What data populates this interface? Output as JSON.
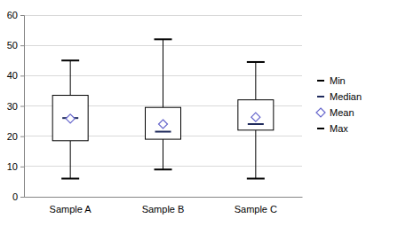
{
  "chart_data": {
    "type": "box",
    "categories": [
      "Sample A",
      "Sample B",
      "Sample C"
    ],
    "q1": [
      18.5,
      19,
      22
    ],
    "q3": [
      33.5,
      29.5,
      32
    ],
    "series": [
      {
        "name": "Min",
        "color": "#000000",
        "marker": "dash",
        "values": [
          6,
          9,
          6
        ]
      },
      {
        "name": "Median",
        "color": "#1f2a5c",
        "marker": "dash",
        "values": [
          26,
          21.5,
          24
        ]
      },
      {
        "name": "Mean",
        "color": "#6666cc",
        "marker": "diamond",
        "values": [
          25.8,
          24,
          26.3
        ]
      },
      {
        "name": "Max",
        "color": "#000000",
        "marker": "dash",
        "values": [
          45,
          52,
          44.5
        ]
      }
    ],
    "ylim": [
      0,
      60
    ],
    "yticks": [
      0,
      10,
      20,
      30,
      40,
      50,
      60
    ],
    "grid": true,
    "legend": "right"
  }
}
